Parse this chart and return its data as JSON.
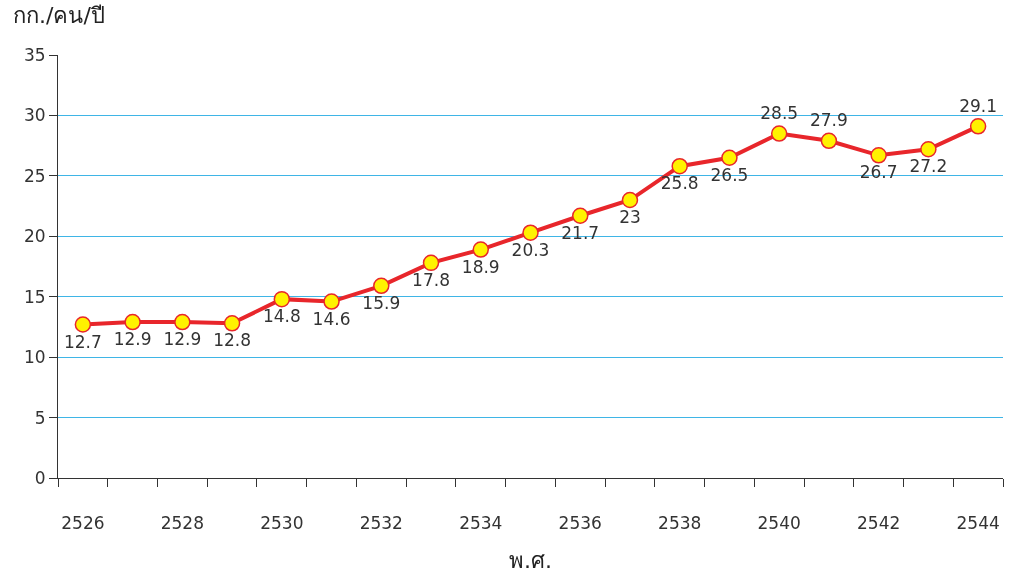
{
  "chart_data": {
    "type": "line",
    "ylabel": "กก./คน/ปี",
    "xlabel": "พ.ศ.",
    "categories": [
      "2526",
      null,
      "2528",
      null,
      "2530",
      null,
      "2532",
      null,
      "2534",
      null,
      "2536",
      null,
      "2538",
      null,
      "2540",
      null,
      "2542",
      null,
      "2544"
    ],
    "series": [
      {
        "color": "#e8262b",
        "values": [
          12.7,
          12.9,
          12.9,
          12.8,
          14.8,
          14.6,
          15.9,
          17.8,
          18.9,
          20.3,
          21.7,
          23,
          25.8,
          26.5,
          28.5,
          27.9,
          26.7,
          27.2,
          29.1
        ]
      }
    ],
    "ylim": [
      0,
      35
    ],
    "yticks": [
      0,
      5,
      10,
      15,
      20,
      25,
      30,
      35
    ],
    "grid": "y",
    "marker": "circle",
    "line_style": "solid",
    "data_labels": true
  }
}
